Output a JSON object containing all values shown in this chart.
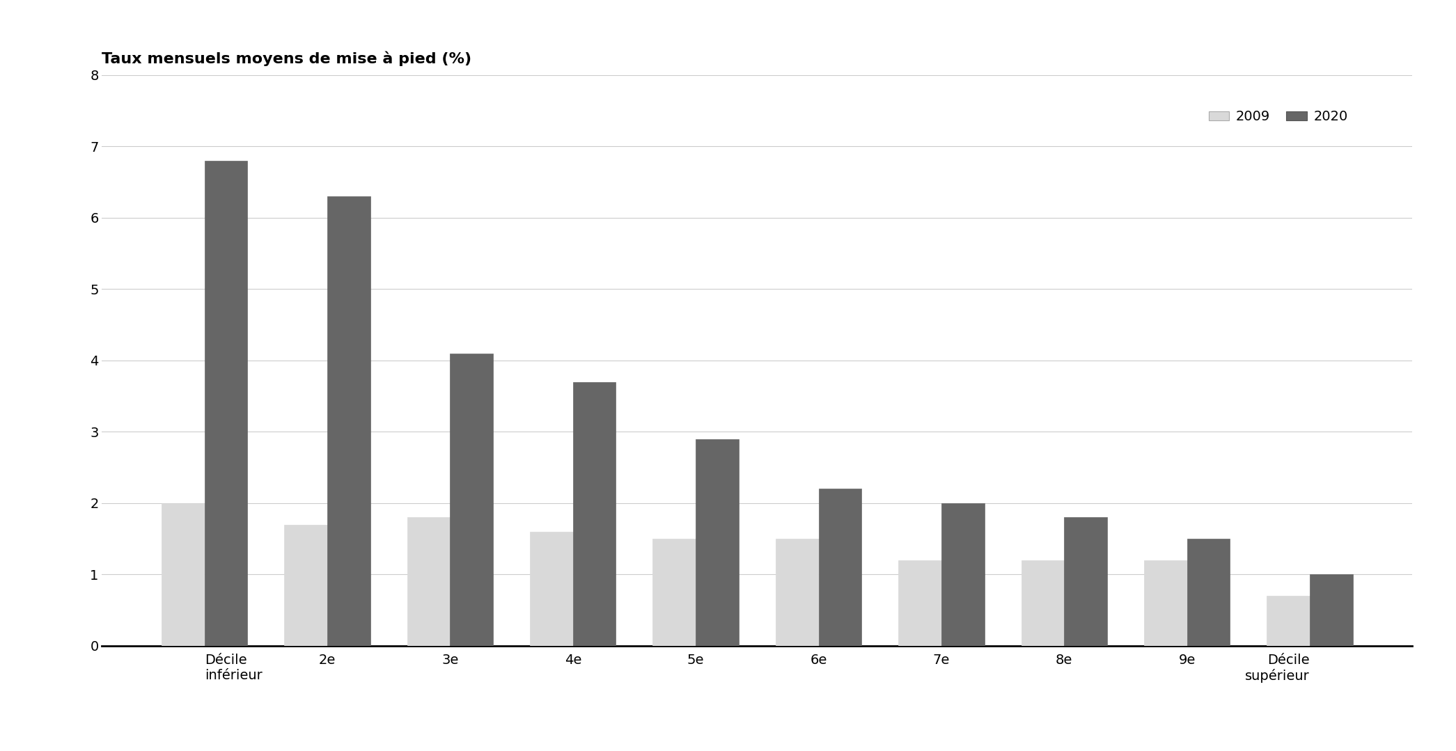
{
  "categories": [
    "Décile\ninférieur",
    "2e",
    "3e",
    "4e",
    "5e",
    "6e",
    "7e",
    "8e",
    "9e",
    "Décile\nsupérieur"
  ],
  "values_2009": [
    2.0,
    1.7,
    1.8,
    1.6,
    1.5,
    1.5,
    1.2,
    1.2,
    1.2,
    0.7
  ],
  "values_2020": [
    6.8,
    6.3,
    4.1,
    3.7,
    2.9,
    2.2,
    2.0,
    1.8,
    1.5,
    1.0
  ],
  "color_2009": "#d9d9d9",
  "color_2020": "#666666",
  "title": "Taux mensuels moyens de mise à pied (%)",
  "ylim": [
    0,
    8
  ],
  "yticks": [
    0,
    1,
    2,
    3,
    4,
    5,
    6,
    7,
    8
  ],
  "legend_labels": [
    "2009",
    "2020"
  ],
  "bar_width": 0.35,
  "background_color": "#ffffff",
  "grid_color": "#cccccc",
  "title_fontsize": 16,
  "tick_fontsize": 14,
  "legend_fontsize": 14
}
